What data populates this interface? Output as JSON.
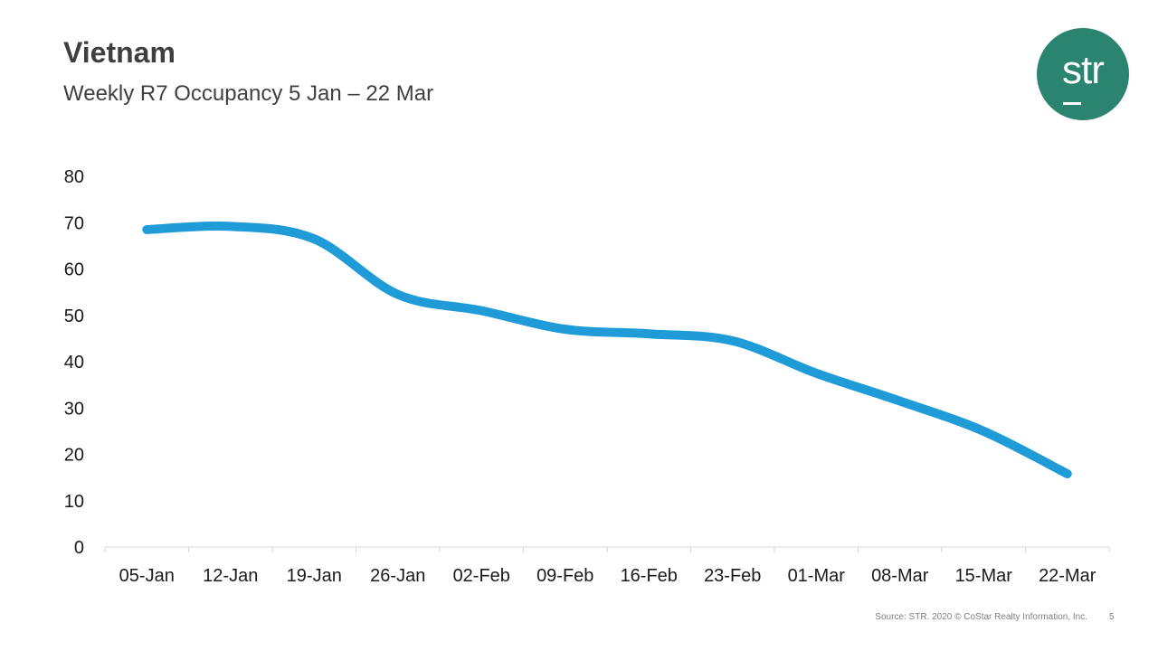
{
  "slide": {
    "title": "Vietnam",
    "subtitle": "Weekly R7 Occupancy 5 Jan – 22 Mar",
    "source": "Source: STR. 2020 © CoStar Realty Information, Inc.",
    "page_number": "5"
  },
  "logo": {
    "text": "str",
    "color": "#2a8470"
  },
  "chart_data": {
    "type": "line",
    "title": "Weekly R7 Occupancy 5 Jan – 22 Mar",
    "xlabel": "",
    "ylabel": "",
    "categories": [
      "05-Jan",
      "12-Jan",
      "19-Jan",
      "26-Jan",
      "02-Feb",
      "09-Feb",
      "16-Feb",
      "23-Feb",
      "01-Mar",
      "08-Mar",
      "15-Mar",
      "22-Mar"
    ],
    "series": [
      {
        "name": "Vietnam",
        "color": "#1f9cd8",
        "values": [
          68.5,
          69.2,
          66.5,
          54.5,
          51.0,
          47.0,
          46.0,
          44.5,
          37.5,
          31.5,
          25.0,
          15.8
        ]
      }
    ],
    "ylim": [
      0,
      80
    ],
    "yticks": [
      0,
      10,
      20,
      30,
      40,
      50,
      60,
      70,
      80
    ],
    "grid": false,
    "legend": "none"
  }
}
